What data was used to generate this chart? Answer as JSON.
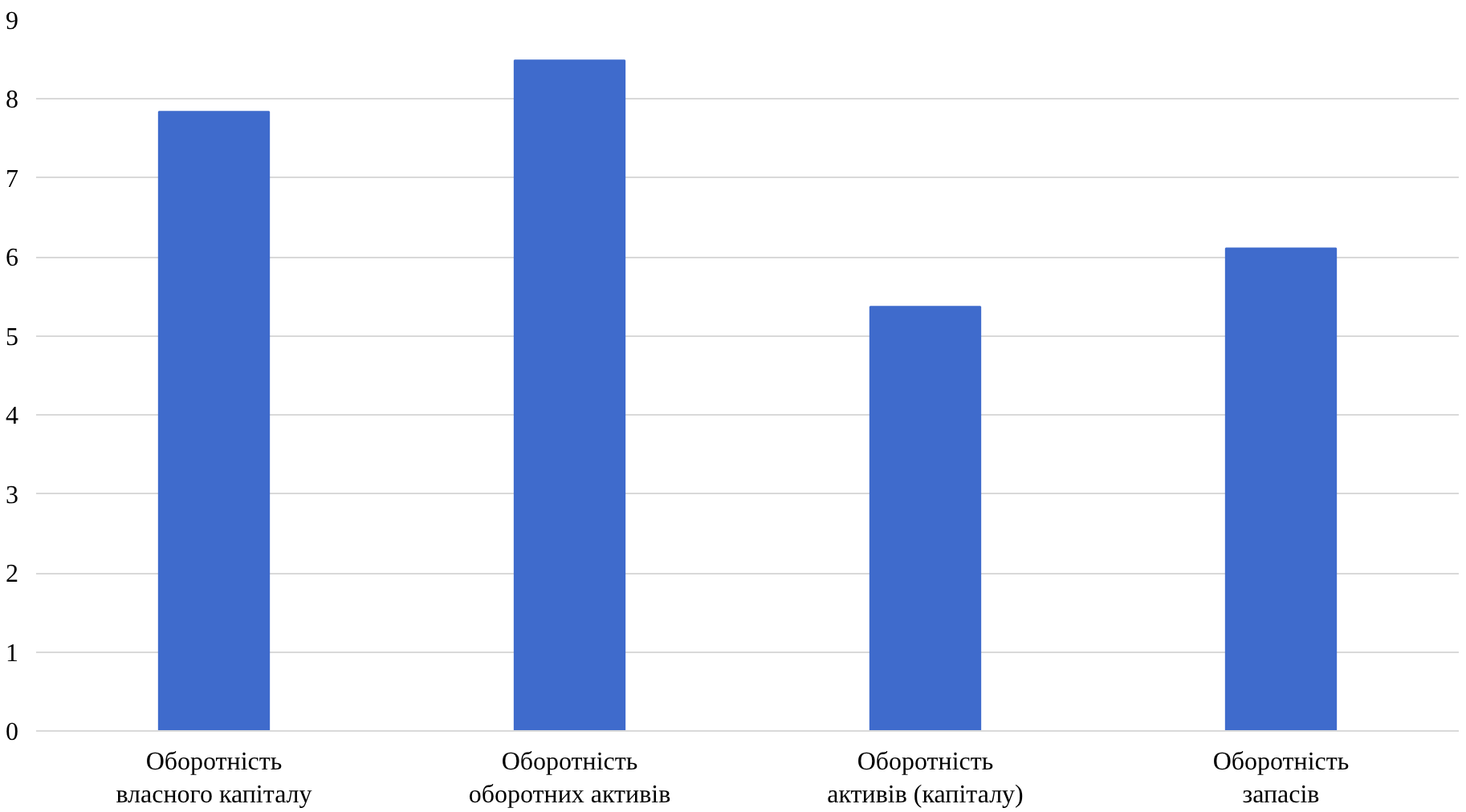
{
  "chart_data": {
    "type": "bar",
    "categories": [
      "Оборотність\nвласного капіталу",
      "Оборотність\nоборотних активів",
      "Оборотність\nактивів (капіталу)",
      "Оборотність\nзапасів"
    ],
    "values": [
      7.84,
      8.49,
      5.37,
      6.11
    ],
    "color": "#3f6bcc",
    "ylim": [
      0,
      9
    ],
    "yticks": [
      0,
      1,
      2,
      3,
      4,
      5,
      6,
      7,
      8,
      9
    ],
    "grid": "y"
  }
}
